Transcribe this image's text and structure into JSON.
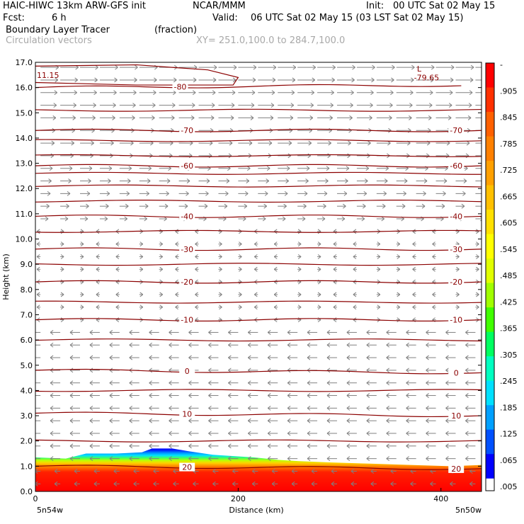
{
  "header": {
    "model": "HAIC-HIWC 13km ARW-GFS init",
    "org": "NCAR/MMM",
    "init_label": "Init:",
    "init_time": "00 UTC Sat 02 May 15",
    "fcst_label": "Fcst:",
    "fcst_value": "6 h",
    "valid_label": "Valid:",
    "valid_time": "06 UTC Sat 02 May 15 (03 LST Sat 02 May 15)",
    "field": "Boundary Layer Tracer",
    "field_units": "(fraction)",
    "overlay": "Circulation vectors",
    "xy_range": "XY= 251.0,100.0 to 284.7,100.0"
  },
  "colors": {
    "contour": "#8b0000",
    "vector": "#808080",
    "scale": [
      "#ffffff",
      "#0000ff",
      "#0050ff",
      "#00a0ff",
      "#00e0ff",
      "#00ffc0",
      "#00ff60",
      "#40ff00",
      "#a0ff00",
      "#e0ff00",
      "#ffff00",
      "#ffe000",
      "#ffc000",
      "#ffa000",
      "#ff8000",
      "#ff6000",
      "#ff3000",
      "#ff0000"
    ]
  },
  "chart_data": {
    "type": "contour",
    "xlabel": "Distance (km)",
    "ylabel": "Height (km)",
    "xlim": [
      0,
      440
    ],
    "ylim": [
      0,
      17
    ],
    "x_ticks": [
      0,
      200,
      400
    ],
    "x_tick_labels": [
      "0",
      "200",
      "400"
    ],
    "y_ticks": [
      0,
      1,
      2,
      3,
      4,
      5,
      6,
      7,
      8,
      9,
      10,
      11,
      12,
      13,
      14,
      15,
      16,
      17
    ],
    "y_tick_labels": [
      "0.0",
      "1.0",
      "2.0",
      "3.0",
      "4.0",
      "5.0",
      "6.0",
      "7.0",
      "8.0",
      "9.0",
      "10.0",
      "11.0",
      "12.0",
      "13.0",
      "14.0",
      "15.0",
      "16.0",
      "17.0"
    ],
    "left_endpoint": "5n54w",
    "right_endpoint": "5n50w",
    "colorbar_labels": [
      "-",
      ".905",
      ".845",
      ".785",
      ".725",
      ".665",
      ".605",
      ".545",
      ".485",
      ".425",
      ".365",
      ".305",
      ".245",
      ".185",
      ".125",
      ".065",
      ".005"
    ],
    "temperature_contours": [
      {
        "label": "-80",
        "km": [
          0,
          420
        ],
        "y": [
          16.0,
          16.1
        ]
      },
      {
        "label": "-70",
        "km": [
          0,
          440
        ],
        "y": [
          14.3,
          14.3
        ]
      },
      {
        "label": "-60",
        "km": [
          0,
          440
        ],
        "y": [
          12.9,
          12.9
        ]
      },
      {
        "label": "-40",
        "km": [
          0,
          440
        ],
        "y": [
          10.9,
          10.9
        ]
      },
      {
        "label": "-30",
        "km": [
          0,
          440
        ],
        "y": [
          9.6,
          9.6
        ]
      },
      {
        "label": "-20",
        "km": [
          0,
          440
        ],
        "y": [
          8.3,
          8.3
        ]
      },
      {
        "label": "-10",
        "km": [
          0,
          440
        ],
        "y": [
          6.8,
          6.8
        ]
      },
      {
        "label": "0",
        "km": [
          0,
          440
        ],
        "y": [
          4.8,
          4.7
        ]
      },
      {
        "label": "10",
        "km": [
          0,
          440
        ],
        "y": [
          3.1,
          3.0
        ]
      },
      {
        "label": "20",
        "km": [
          0,
          440
        ],
        "y": [
          1.0,
          0.9
        ]
      }
    ],
    "unlabeled_contour_levels": [
      15.1,
      13.9,
      13.3,
      12.6,
      12.1,
      11.5,
      10.3,
      9.0,
      7.5,
      6.0,
      4.0,
      2.0
    ],
    "annotations": [
      {
        "text": "11.15",
        "x_km": 0,
        "y_km": 16.5
      },
      {
        "text": "L",
        "x_km": 375,
        "y_km": 16.75
      },
      {
        "text": "-79.65",
        "x_km": 372,
        "y_km": 16.4
      }
    ],
    "tracer_top_km": [
      [
        0,
        1.35
      ],
      [
        30,
        1.3
      ],
      [
        50,
        1.5
      ],
      [
        80,
        1.5
      ],
      [
        105,
        1.55
      ],
      [
        115,
        1.7
      ],
      [
        135,
        1.7
      ],
      [
        150,
        1.6
      ],
      [
        175,
        1.45
      ],
      [
        215,
        1.35
      ],
      [
        240,
        1.25
      ],
      [
        260,
        1.2
      ],
      [
        290,
        1.15
      ],
      [
        330,
        1.1
      ],
      [
        370,
        1.05
      ],
      [
        410,
        1.0
      ],
      [
        440,
        1.05
      ]
    ]
  }
}
